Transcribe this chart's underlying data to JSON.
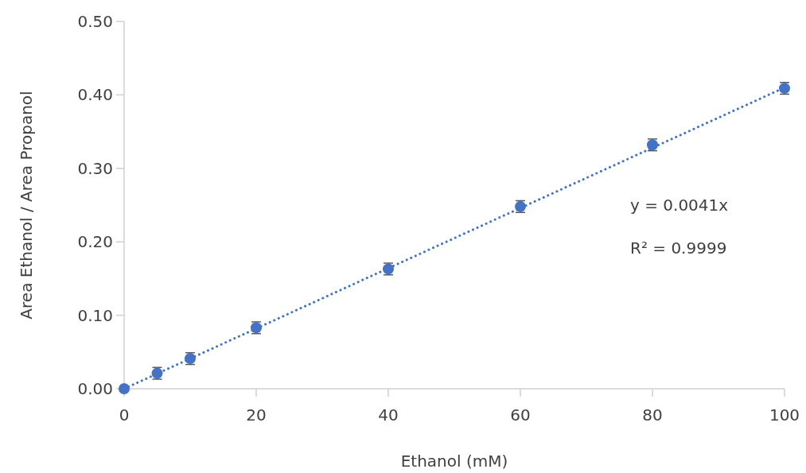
{
  "chart_data": {
    "type": "scatter",
    "xlabel": "Ethanol (mM)",
    "ylabel": "Area Ethanol / Area Propanol",
    "xlim": [
      0,
      100
    ],
    "xticks": [
      0,
      20,
      40,
      60,
      80,
      100
    ],
    "ylim": [
      0,
      0.5
    ],
    "yticks": [
      {
        "value": 0,
        "label": "0.00"
      },
      {
        "value": 0.1,
        "label": "0.10"
      },
      {
        "value": 0.2,
        "label": "0.20"
      },
      {
        "value": 0.3,
        "label": "0.30"
      },
      {
        "value": 0.4,
        "label": "0.40"
      },
      {
        "value": 0.5,
        "label": "0.50"
      }
    ],
    "grid": false,
    "marker": "circle",
    "annotations": [
      "y = 0.0041x",
      "R² = 0.9999"
    ],
    "series": [
      {
        "color": "#4472c4",
        "x": [
          0,
          5,
          10,
          20,
          40,
          60,
          80,
          100
        ],
        "values": [
          0,
          0.021,
          0.041,
          0.083,
          0.163,
          0.248,
          0.332,
          0.409
        ],
        "errors": [
          null,
          0.008,
          0.008,
          0.008,
          0.008,
          0.008,
          0.008,
          0.008
        ]
      },
      {
        "type": "line",
        "color": "#4472c4",
        "line_style": "dotted",
        "marker": "none",
        "x": [
          0,
          100
        ],
        "values": [
          0,
          0.41
        ]
      }
    ]
  }
}
